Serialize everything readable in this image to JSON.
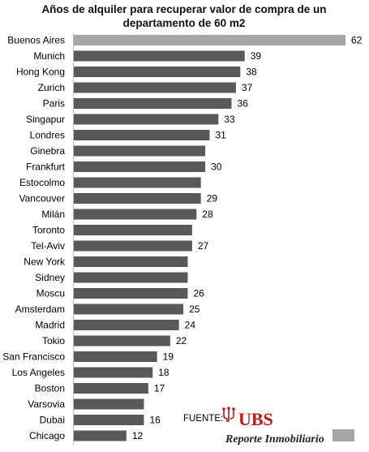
{
  "chart_data": {
    "type": "bar",
    "orientation": "horizontal",
    "title": "Años de alquiler para recuperar valor de compra de un departamento de 60 m2",
    "title_lines": [
      "Años de alquiler para recuperar valor de compra de un",
      "departamento de 60 m2"
    ],
    "categories": [
      "Buenos Aires",
      "Munich",
      "Hong Kong",
      "Zurich",
      "Paris",
      "Singapur",
      "Londres",
      "Ginebra",
      "Frankfurt",
      "Estocolmo",
      "Vancouver",
      "Milán",
      "Toronto",
      "Tel-Aviv",
      "New York",
      "Sidney",
      "Moscu",
      "Amsterdam",
      "Madrid",
      "Tokio",
      "San Francisco",
      "Los Angeles",
      "Boston",
      "Varsovia",
      "Dubai",
      "Chicago"
    ],
    "values": [
      62,
      39,
      38,
      37,
      36,
      33,
      31,
      30,
      30,
      29,
      29,
      28,
      27,
      27,
      26,
      26,
      26,
      25,
      24,
      22,
      19,
      18,
      17,
      16,
      16,
      12
    ],
    "labels": [
      "62",
      "39",
      "38",
      "37",
      "36",
      "33",
      "31",
      "",
      "30",
      "",
      "29",
      "28",
      "",
      "27",
      "",
      "",
      "26",
      "25",
      "24",
      "22",
      "19",
      "18",
      "17",
      "",
      "16",
      "12"
    ],
    "highlight_index": 0,
    "colors": {
      "bar": "#595959",
      "highlight": "#a6a6a6"
    },
    "xlim": [
      0,
      62
    ],
    "xlabel": "",
    "ylabel": "",
    "grid": false,
    "legend": false
  },
  "source": {
    "label": "FUENTE:",
    "brand": "UBS",
    "publisher": "Reporte Inmobiliario"
  }
}
